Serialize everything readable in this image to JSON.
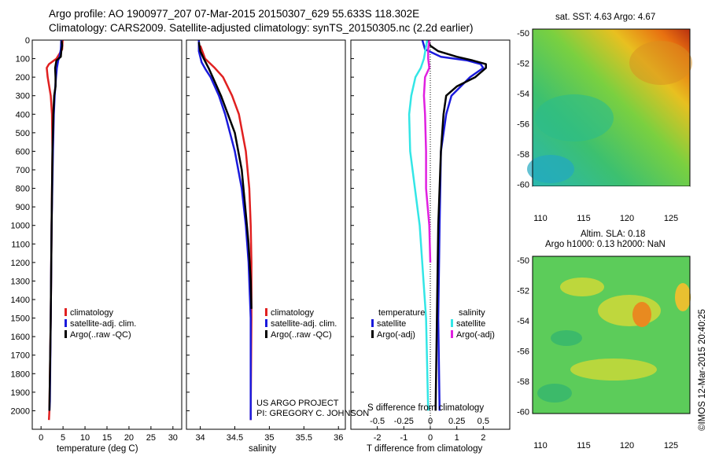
{
  "header": {
    "line1": "Argo profile: AO 1900977_207 07-Mar-2015 20150307_629 55.633S 118.302E",
    "line2": "Climatology: CARS2009. Satellite-adjusted climatology: synTS_20150305.nc (2.2d earlier)"
  },
  "colors": {
    "climatology": "#e02020",
    "satellite": "#1a1adc",
    "argo": "#000000",
    "satellite_s": "#33e6e6",
    "argo_s": "#e020e0"
  },
  "credit": {
    "line1": "US ARGO PROJECT",
    "line2": "PI: GREGORY C. JOHNSON"
  },
  "timestamp": "©IMOS 12-Mar-2015 20:40:25",
  "sst_map_title": "sat. SST: 4.63 Argo: 4.67",
  "sla_map_title_1": "Altim. SLA: 0.18",
  "sla_map_title_2": "Argo h1000: 0.13 h2000: NaN",
  "chart_data": [
    {
      "type": "line",
      "title": "",
      "xlabel": "temperature (deg C)",
      "ylabel": "",
      "xlim": [
        -2,
        32
      ],
      "ylim": [
        2100,
        0
      ],
      "xticks": [
        "0",
        "5",
        "10",
        "15",
        "20",
        "25",
        "30"
      ],
      "yticks": [
        "0",
        "100",
        "200",
        "300",
        "400",
        "500",
        "600",
        "700",
        "800",
        "900",
        "1000",
        "1100",
        "1200",
        "1300",
        "1400",
        "1500",
        "1600",
        "1700",
        "1800",
        "1900",
        "2000"
      ],
      "legend": [
        "climatology",
        "satellite-adj. clim.",
        "Argo(..raw -QC)"
      ],
      "series": [
        {
          "name": "climatology",
          "depth": [
            0,
            50,
            100,
            130,
            150,
            200,
            300,
            400,
            600,
            1000,
            1500,
            2000,
            2050
          ],
          "values": [
            4.9,
            4.8,
            3.5,
            1.8,
            1.3,
            1.5,
            2.2,
            2.5,
            2.6,
            2.4,
            2.2,
            1.9,
            1.8
          ]
        },
        {
          "name": "satellite-adj. clim.",
          "depth": [
            0,
            50,
            90,
            110,
            150,
            200,
            300,
            400,
            600,
            1000,
            1500,
            1950,
            2000
          ],
          "values": [
            4.6,
            4.5,
            4.2,
            3.9,
            3.6,
            3.4,
            3.1,
            2.9,
            2.7,
            2.4,
            2.2,
            2.0,
            1.9
          ]
        },
        {
          "name": "Argo(..raw -QC)",
          "depth": [
            5,
            30,
            60,
            90,
            110,
            150,
            200,
            250,
            300,
            400,
            600,
            1000,
            1500,
            2000
          ],
          "values": [
            4.7,
            4.8,
            4.6,
            4.5,
            3.5,
            3.2,
            3.3,
            3.3,
            3.0,
            2.8,
            2.6,
            2.4,
            2.2,
            1.9
          ]
        }
      ]
    },
    {
      "type": "line",
      "title": "",
      "xlabel": "salinity",
      "ylabel": "",
      "xlim": [
        33.8,
        36.1
      ],
      "ylim": [
        2100,
        0
      ],
      "xticks": [
        "34",
        "34.5",
        "35",
        "35.5",
        "36"
      ],
      "legend": [
        "climatology",
        "satellite-adj. clim.",
        "Argo(..raw -QC)"
      ],
      "series": [
        {
          "name": "climatology",
          "depth": [
            30,
            100,
            150,
            200,
            300,
            400,
            600,
            800,
            1000,
            1200,
            1500,
            2000,
            2050
          ],
          "values": [
            34.0,
            34.07,
            34.21,
            34.33,
            34.46,
            34.56,
            34.66,
            34.71,
            34.73,
            34.74,
            34.74,
            34.73,
            34.73
          ]
        },
        {
          "name": "satellite-adj. clim.",
          "depth": [
            0,
            60,
            120,
            160,
            200,
            300,
            400,
            600,
            800,
            1000,
            1200,
            1500,
            2000,
            2050
          ],
          "values": [
            33.98,
            33.98,
            34.02,
            34.08,
            34.15,
            34.27,
            34.36,
            34.5,
            34.6,
            34.66,
            34.7,
            34.73,
            34.73,
            34.73
          ]
        },
        {
          "name": "Argo(..raw -QC)",
          "depth": [
            10,
            60,
            100,
            150,
            200,
            300,
            400,
            500,
            700,
            900,
            1100,
            1300,
            1450
          ],
          "values": [
            33.98,
            34.0,
            34.05,
            34.12,
            34.18,
            34.3,
            34.4,
            34.5,
            34.6,
            34.65,
            34.7,
            34.73,
            34.74
          ]
        }
      ]
    },
    {
      "type": "line",
      "title": "",
      "xlabel": "T difference from climatology",
      "x2label": "S difference from climatology",
      "ylabel": "",
      "xlim": [
        -3,
        3
      ],
      "x2lim": [
        -0.75,
        0.75
      ],
      "ylim": [
        2100,
        0
      ],
      "xticks": [
        "-2",
        "-1",
        "0",
        "1",
        "2"
      ],
      "x2ticks": [
        "-0.5",
        "-0.25",
        "0",
        "0.25",
        "0.5"
      ],
      "legend_temperature_title": "temperature",
      "legend_salinity_title": "salinity",
      "legend": [
        "satellite",
        "Argo(-adj)",
        "satellite",
        "Argo(-adj)"
      ],
      "series": [
        {
          "name": "temperature satellite",
          "depth": [
            0,
            50,
            90,
            110,
            130,
            150,
            200,
            300,
            400,
            600,
            1000,
            1500,
            2000
          ],
          "values": [
            -0.3,
            -0.2,
            0.4,
            1.4,
            1.9,
            2.0,
            1.5,
            0.8,
            0.6,
            0.4,
            0.35,
            0.3,
            0.35
          ]
        },
        {
          "name": "temperature Argo(-adj)",
          "depth": [
            0,
            30,
            60,
            90,
            110,
            130,
            150,
            200,
            250,
            300,
            400,
            600,
            1000,
            1500,
            2000
          ],
          "values": [
            -0.1,
            0.0,
            0.3,
            1.0,
            1.6,
            2.1,
            2.1,
            1.7,
            1.0,
            0.6,
            0.5,
            0.4,
            0.3,
            0.25,
            0.2
          ]
        },
        {
          "name": "salinity satellite",
          "depth": [
            0,
            100,
            150,
            200,
            300,
            400,
            600,
            1000,
            1500,
            2000
          ],
          "values": [
            -0.03,
            -0.06,
            -0.09,
            -0.14,
            -0.18,
            -0.2,
            -0.19,
            -0.1,
            -0.04,
            -0.02
          ]
        },
        {
          "name": "salinity Argo(-adj)",
          "depth": [
            0,
            50,
            100,
            150,
            200,
            300,
            400,
            600,
            800,
            1000,
            1200
          ],
          "values": [
            -0.01,
            -0.02,
            -0.02,
            -0.01,
            -0.05,
            -0.06,
            -0.05,
            -0.04,
            -0.04,
            -0.01,
            0.0
          ]
        }
      ]
    },
    {
      "type": "heatmap",
      "title": "sat. SST: 4.63 Argo: 4.67",
      "xticks": [
        "110",
        "115",
        "120",
        "125"
      ],
      "yticks": [
        "-50",
        "-52",
        "-54",
        "-56",
        "-58",
        "-60"
      ]
    },
    {
      "type": "heatmap",
      "title": "Altim. SLA: 0.18 / Argo h1000: 0.13 h2000: NaN",
      "xticks": [
        "110",
        "115",
        "120",
        "125"
      ],
      "yticks": [
        "-50",
        "-52",
        "-54",
        "-56",
        "-58",
        "-60"
      ]
    }
  ]
}
